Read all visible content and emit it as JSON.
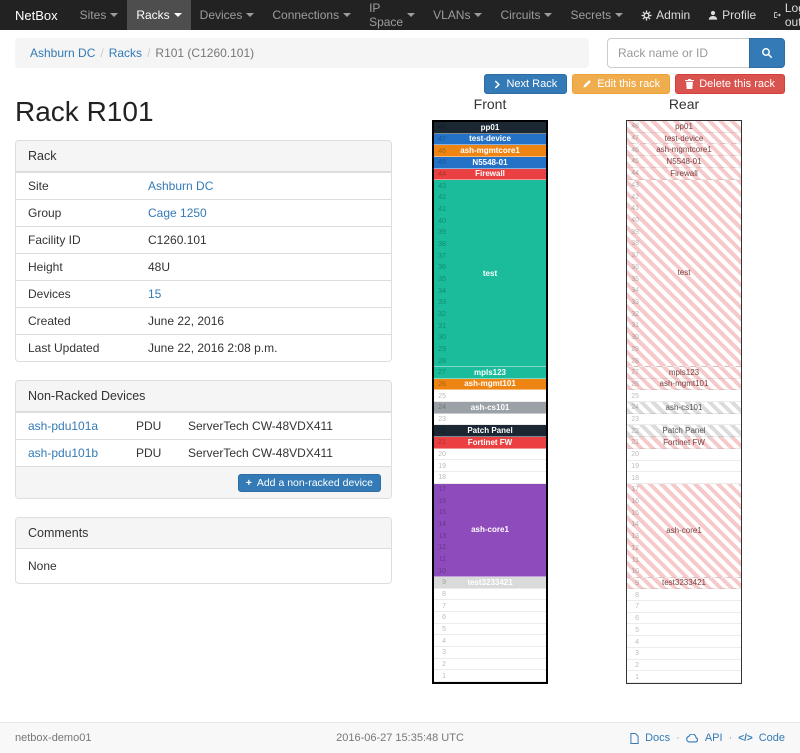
{
  "navbar": {
    "brand": "NetBox",
    "items": [
      {
        "label": "Sites"
      },
      {
        "label": "Racks"
      },
      {
        "label": "Devices"
      },
      {
        "label": "Connections"
      },
      {
        "label": "IP Space"
      },
      {
        "label": "VLANs"
      },
      {
        "label": "Circuits"
      },
      {
        "label": "Secrets"
      }
    ],
    "right": [
      {
        "label": "Admin"
      },
      {
        "label": "Profile"
      },
      {
        "label": "Log out"
      }
    ]
  },
  "breadcrumb": {
    "site": "Ashburn DC",
    "section": "Racks",
    "current": "R101 (C1260.101)",
    "separator": "/"
  },
  "search": {
    "placeholder": "Rack name or ID"
  },
  "actions": {
    "next_label": "Next Rack",
    "edit_label": "Edit this rack",
    "delete_label": "Delete this rack"
  },
  "page_title": "Rack R101",
  "rack_panel": {
    "title": "Rack",
    "rows": [
      {
        "label": "Site",
        "value": "Ashburn DC"
      },
      {
        "label": "Group",
        "value": "Cage 1250"
      },
      {
        "label": "Facility ID",
        "value": "C1260.101"
      },
      {
        "label": "Height",
        "value": "48U"
      },
      {
        "label": "Devices",
        "value": "15"
      },
      {
        "label": "Created",
        "value": "June 22, 2016"
      },
      {
        "label": "Last Updated",
        "value": "June 22, 2016 2:08 p.m."
      }
    ]
  },
  "nonracked": {
    "title": "Non-Racked Devices",
    "rows": [
      {
        "name": "ash-pdu101a",
        "type": "PDU",
        "model": "ServerTech CW-48VDX411"
      },
      {
        "name": "ash-pdu101b",
        "type": "PDU",
        "model": "ServerTech CW-48VDX411"
      }
    ],
    "add_label": "Add a non-racked device"
  },
  "comments": {
    "title": "Comments",
    "body": "None"
  },
  "elevation": {
    "front_title": "Front",
    "rear_title": "Rear",
    "units_total": 48,
    "devices": [
      {
        "name": "pp01",
        "top_u": 48,
        "u_height": 1,
        "color": "#1b2733",
        "rear_gray": false
      },
      {
        "name": "test-device",
        "top_u": 47,
        "u_height": 1,
        "color": "#2472c8",
        "rear_gray": false
      },
      {
        "name": "ash-mgmtcore1",
        "top_u": 46,
        "u_height": 1,
        "color": "#ee8513",
        "rear_gray": false
      },
      {
        "name": "N5548-01",
        "top_u": 45,
        "u_height": 1,
        "color": "#2472c8",
        "rear_gray": false
      },
      {
        "name": "Firewall",
        "top_u": 44,
        "u_height": 1,
        "color": "#ea4041",
        "rear_gray": false
      },
      {
        "name": "test",
        "top_u": 43,
        "u_height": 16,
        "color": "#1abc9c",
        "rear_gray": false
      },
      {
        "name": "mpls123",
        "top_u": 27,
        "u_height": 1,
        "color": "#1abc9c",
        "rear_gray": false
      },
      {
        "name": "ash-mgmt101",
        "top_u": 26,
        "u_height": 1,
        "color": "#ee8513",
        "rear_gray": false
      },
      {
        "name": "ash-cs101",
        "top_u": 24,
        "u_height": 1,
        "color": "#9ba1a6",
        "rear_gray": true
      },
      {
        "name": "Patch Panel",
        "top_u": 22,
        "u_height": 1,
        "color": "#1b2733",
        "rear_gray": true
      },
      {
        "name": "Fortinet FW",
        "top_u": 21,
        "u_height": 1,
        "color": "#ea4041",
        "rear_gray": false
      },
      {
        "name": "ash-core1",
        "top_u": 17,
        "u_height": 8,
        "color": "#8e4bbc",
        "rear_gray": false
      },
      {
        "name": "test3233421",
        "top_u": 9,
        "u_height": 1,
        "color": "#dadada",
        "rear_gray": false
      }
    ]
  },
  "footer": {
    "hostname": "netbox-demo01",
    "timestamp": "2016-06-27 15:35:48 UTC",
    "docs_label": "Docs",
    "api_label": "API",
    "code_label": "Code",
    "separator": "·"
  }
}
